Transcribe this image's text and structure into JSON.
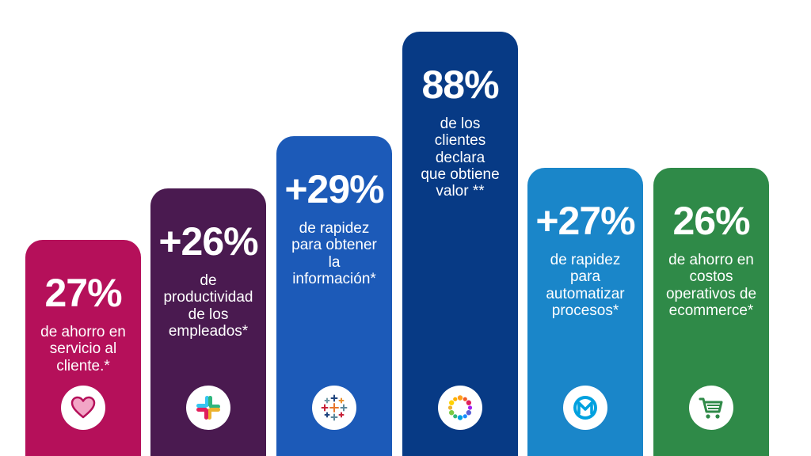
{
  "chart_data": {
    "type": "bar",
    "categories": [
      "ahorro en servicio al cliente",
      "productividad de los empleados",
      "rapidez para obtener la información",
      "clientes que obtiene valor",
      "rapidez para automatizar procesos",
      "ahorro en costos operativos de ecommerce"
    ],
    "bars": [
      {
        "value_label": "27%",
        "value": 27,
        "description": "de ahorro en\nservicio al\ncliente.*",
        "color": "#b5105a",
        "icon": "heart-icon"
      },
      {
        "value_label": "+26%",
        "value": 26,
        "description": "de\nproductividad\nde los\nempleados*",
        "color": "#4a1a50",
        "icon": "slack-logo-icon"
      },
      {
        "value_label": "+29%",
        "value": 29,
        "description": "de rapidez\npara obtener\nla\ninformación*",
        "color": "#1c5ab8",
        "icon": "tableau-logo-icon"
      },
      {
        "value_label": "88%",
        "value": 88,
        "description": "de los\nclientes\ndeclara\nque obtiene\nvalor **",
        "color": "#073a85",
        "icon": "dots-ring-logo-icon"
      },
      {
        "value_label": "+27%",
        "value": 27,
        "description": "de rapidez\npara\nautomatizar\nprocesos*",
        "color": "#1a86c9",
        "icon": "mulesoft-logo-icon"
      },
      {
        "value_label": "26%",
        "value": 26,
        "description": "de ahorro en\ncostos\noperativos de\necommerce*",
        "color": "#2f8a48",
        "icon": "shopping-cart-icon"
      }
    ]
  }
}
